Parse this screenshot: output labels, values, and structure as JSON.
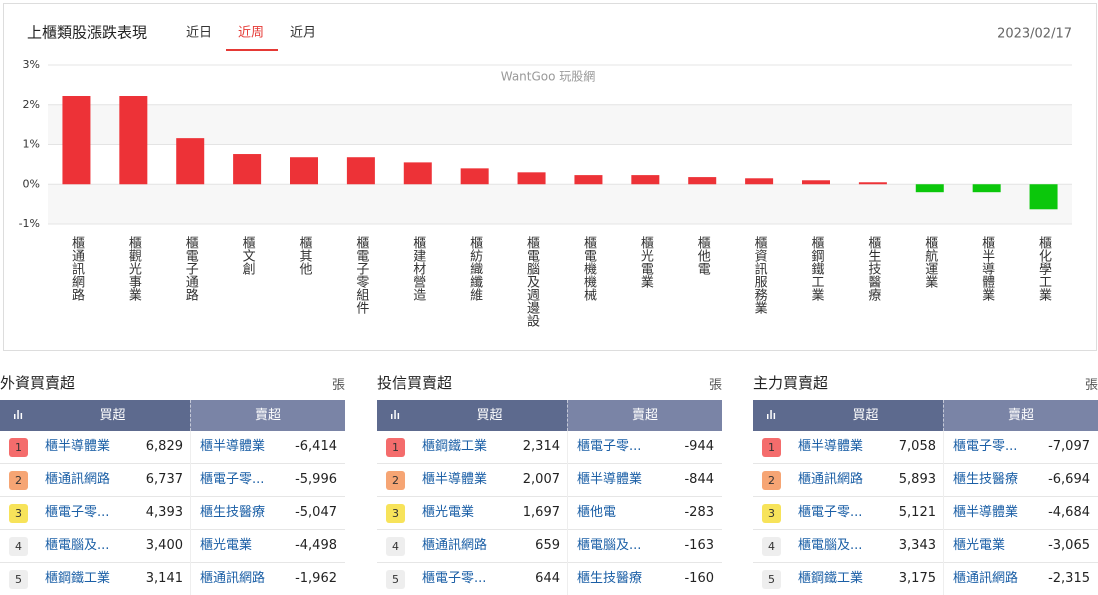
{
  "header": {
    "title": "上櫃類股漲跌表現",
    "tabs": [
      "近日",
      "近周",
      "近月"
    ],
    "date": "2023/02/17"
  },
  "chart_data": {
    "type": "bar",
    "watermark": "WantGoo 玩股網",
    "categories": [
      "櫃通訊網路",
      "櫃觀光事業",
      "櫃電子通路",
      "櫃文創",
      "櫃其他",
      "櫃電子零組件",
      "櫃建材營造",
      "櫃紡織纖維",
      "櫃電腦及週邊設",
      "櫃電機機械",
      "櫃光電業",
      "櫃他電",
      "櫃資訊服務業",
      "櫃鋼鐵工業",
      "櫃生技醫療",
      "櫃航運業",
      "櫃半導體業",
      "櫃化學工業"
    ],
    "values": [
      2.22,
      2.22,
      1.16,
      0.76,
      0.68,
      0.68,
      0.55,
      0.4,
      0.3,
      0.23,
      0.23,
      0.18,
      0.15,
      0.1,
      0.05,
      -0.2,
      -0.2,
      -0.63
    ],
    "color_up": "#ed3237",
    "color_down": "#0bc70b",
    "ylim": [
      -1,
      3
    ],
    "yticks": [
      {
        "value": 3,
        "label": "3%"
      },
      {
        "value": 2,
        "label": "2%"
      },
      {
        "value": 1,
        "label": "1%"
      },
      {
        "value": 0,
        "label": "0%"
      },
      {
        "value": -1,
        "label": "-1%"
      }
    ],
    "grid": true
  },
  "tables": [
    {
      "title": "外資買賣超",
      "unit": "張",
      "columns": [
        "買超",
        "賣超"
      ],
      "rows": [
        [
          "1",
          "櫃半導體業",
          "6,829",
          "櫃半導體業",
          "-6,414"
        ],
        [
          "2",
          "櫃通訊網路",
          "6,737",
          "櫃電子零...",
          "-5,996"
        ],
        [
          "3",
          "櫃電子零...",
          "4,393",
          "櫃生技醫療",
          "-5,047"
        ],
        [
          "4",
          "櫃電腦及...",
          "3,400",
          "櫃光電業",
          "-4,498"
        ],
        [
          "5",
          "櫃鋼鐵工業",
          "3,141",
          "櫃通訊網路",
          "-1,962"
        ]
      ]
    },
    {
      "title": "投信買賣超",
      "unit": "張",
      "columns": [
        "買超",
        "賣超"
      ],
      "rows": [
        [
          "1",
          "櫃鋼鐵工業",
          "2,314",
          "櫃電子零...",
          "-944"
        ],
        [
          "2",
          "櫃半導體業",
          "2,007",
          "櫃半導體業",
          "-844"
        ],
        [
          "3",
          "櫃光電業",
          "1,697",
          "櫃他電",
          "-283"
        ],
        [
          "4",
          "櫃通訊網路",
          "659",
          "櫃電腦及...",
          "-163"
        ],
        [
          "5",
          "櫃電子零...",
          "644",
          "櫃生技醫療",
          "-160"
        ]
      ]
    },
    {
      "title": "主力買賣超",
      "unit": "張",
      "columns": [
        "買超",
        "賣超"
      ],
      "rows": [
        [
          "1",
          "櫃半導體業",
          "7,058",
          "櫃電子零...",
          "-7,097"
        ],
        [
          "2",
          "櫃通訊網路",
          "5,893",
          "櫃生技醫療",
          "-6,694"
        ],
        [
          "3",
          "櫃電子零...",
          "5,121",
          "櫃半導體業",
          "-4,684"
        ],
        [
          "4",
          "櫃電腦及...",
          "3,343",
          "櫃光電業",
          "-3,065"
        ],
        [
          "5",
          "櫃鋼鐵工業",
          "3,175",
          "櫃通訊網路",
          "-2,315"
        ]
      ]
    }
  ]
}
